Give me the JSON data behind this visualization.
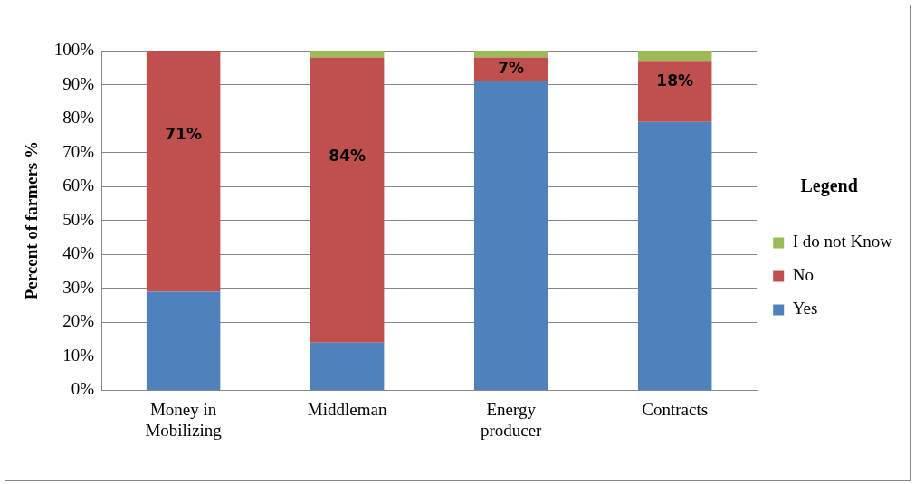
{
  "chart_data": {
    "type": "bar",
    "stacked": true,
    "ylabel": "Percent of farmers %",
    "legend_title": "Legend",
    "legend": "right",
    "grid": "y",
    "categories": [
      "Money in Mobilizing",
      "Middleman",
      "Energy producer",
      "Contracts"
    ],
    "ylim": [
      0,
      100
    ],
    "yticks": [
      {
        "value": 0,
        "label": "0%"
      },
      {
        "value": 10,
        "label": "10%"
      },
      {
        "value": 20,
        "label": "20%"
      },
      {
        "value": 30,
        "label": "30%"
      },
      {
        "value": 40,
        "label": "40%"
      },
      {
        "value": 50,
        "label": "50%"
      },
      {
        "value": 60,
        "label": "60%"
      },
      {
        "value": 70,
        "label": "70%"
      },
      {
        "value": 80,
        "label": "80%"
      },
      {
        "value": 90,
        "label": "90%"
      },
      {
        "value": 100,
        "label": "100%"
      }
    ],
    "series": [
      {
        "name": "Yes",
        "color": "#4f81bd",
        "values": [
          29,
          14,
          91,
          79
        ]
      },
      {
        "name": "No",
        "color": "#c0504d",
        "values": [
          71,
          84,
          7,
          18
        ],
        "value_labels": [
          "71%",
          "84%",
          "7%",
          "18%"
        ]
      },
      {
        "name": "I do not Know",
        "color": "#9bbb59",
        "values": [
          0,
          2,
          2,
          3
        ]
      }
    ]
  }
}
